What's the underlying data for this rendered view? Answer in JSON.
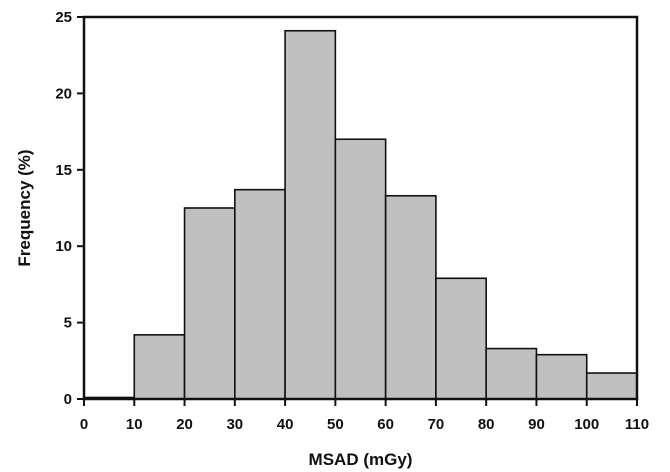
{
  "chart_data": {
    "type": "bar",
    "subtype": "histogram",
    "title": "",
    "xlabel": "MSAD (mGy)",
    "ylabel": "Frequency (%)",
    "xlim": [
      0,
      110
    ],
    "ylim": [
      0,
      25
    ],
    "x_ticks": [
      0,
      10,
      20,
      30,
      40,
      50,
      60,
      70,
      80,
      90,
      100,
      110
    ],
    "y_ticks": [
      0,
      5,
      10,
      15,
      20,
      25
    ],
    "bins": [
      {
        "x0": 0,
        "x1": 10,
        "value": 0.1
      },
      {
        "x0": 10,
        "x1": 20,
        "value": 4.2
      },
      {
        "x0": 20,
        "x1": 30,
        "value": 12.5
      },
      {
        "x0": 30,
        "x1": 40,
        "value": 13.7
      },
      {
        "x0": 40,
        "x1": 50,
        "value": 24.1
      },
      {
        "x0": 50,
        "x1": 60,
        "value": 17.0
      },
      {
        "x0": 60,
        "x1": 70,
        "value": 13.3
      },
      {
        "x0": 70,
        "x1": 80,
        "value": 7.9
      },
      {
        "x0": 80,
        "x1": 90,
        "value": 3.3
      },
      {
        "x0": 90,
        "x1": 100,
        "value": 2.9
      },
      {
        "x0": 100,
        "x1": 110,
        "value": 1.7
      }
    ],
    "grid": false,
    "legend": "none",
    "colors": {
      "bar_fill": "#c0c0c0",
      "bar_stroke": "#111111",
      "axis": "#111111"
    }
  }
}
